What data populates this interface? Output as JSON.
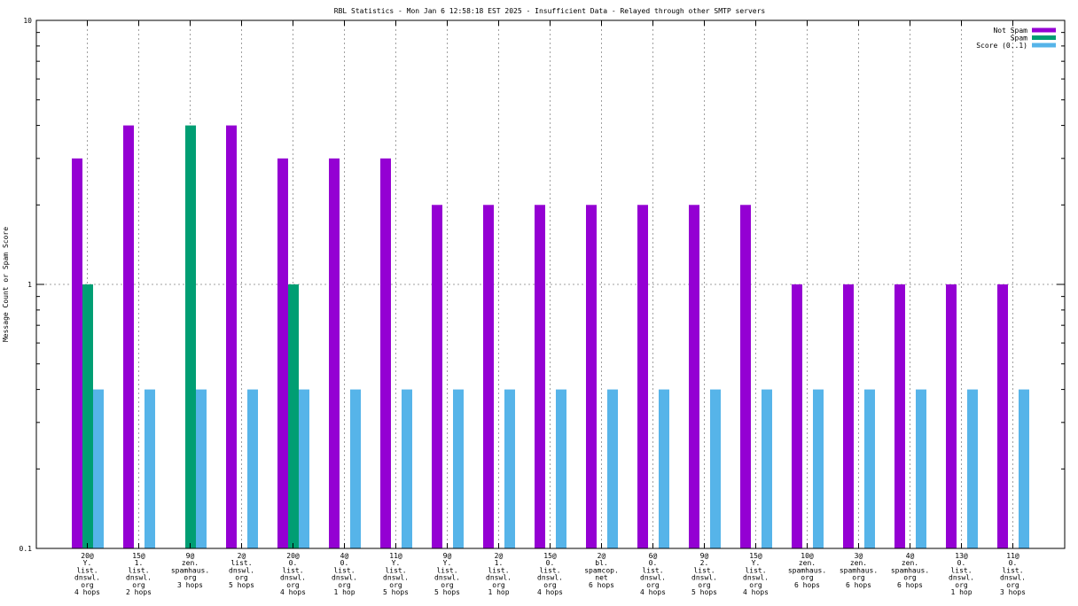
{
  "chart_data": {
    "type": "bar",
    "title": "RBL Statistics - Mon Jan  6 12:58:18 EST 2025 - Insufficient Data - Relayed through other SMTP servers",
    "ylabel": "Message Count or Spam Score",
    "xlabel": "",
    "yscale": "log",
    "ylim": [
      0.1,
      10
    ],
    "ytick_labels": [
      "0.1",
      "1",
      "10"
    ],
    "grid": true,
    "legend_position": "top-right",
    "categories": [
      [
        "20@",
        "Y.",
        "list.",
        "dnswl.",
        "org",
        "4 hops"
      ],
      [
        "15@",
        "1.",
        "list.",
        "dnswl.",
        "org",
        "2 hops"
      ],
      [
        "9@",
        "zen.",
        "spamhaus.",
        "org",
        "3 hops"
      ],
      [
        "2@",
        "list.",
        "dnswl.",
        "org",
        "5 hops"
      ],
      [
        "20@",
        "0.",
        "list.",
        "dnswl.",
        "org",
        "4 hops"
      ],
      [
        "4@",
        "0.",
        "list.",
        "dnswl.",
        "org",
        "1 hop"
      ],
      [
        "11@",
        "Y.",
        "list.",
        "dnswl.",
        "org",
        "5 hops"
      ],
      [
        "9@",
        "Y.",
        "list.",
        "dnswl.",
        "org",
        "5 hops"
      ],
      [
        "2@",
        "1.",
        "list.",
        "dnswl.",
        "org",
        "1 hop"
      ],
      [
        "15@",
        "0.",
        "list.",
        "dnswl.",
        "org",
        "4 hops"
      ],
      [
        "2@",
        "bl.",
        "spamcop.",
        "net",
        "6 hops"
      ],
      [
        "6@",
        "0.",
        "list.",
        "dnswl.",
        "org",
        "4 hops"
      ],
      [
        "9@",
        "2.",
        "list.",
        "dnswl.",
        "org",
        "5 hops"
      ],
      [
        "15@",
        "Y.",
        "list.",
        "dnswl.",
        "org",
        "4 hops"
      ],
      [
        "10@",
        "zen.",
        "spamhaus.",
        "org",
        "6 hops"
      ],
      [
        "3@",
        "zen.",
        "spamhaus.",
        "org",
        "6 hops"
      ],
      [
        "4@",
        "zen.",
        "spamhaus.",
        "org",
        "6 hops"
      ],
      [
        "13@",
        "0.",
        "list.",
        "dnswl.",
        "org",
        "1 hop"
      ],
      [
        "11@",
        "0.",
        "list.",
        "dnswl.",
        "org",
        "3 hops"
      ]
    ],
    "series": [
      {
        "name": "Not Spam",
        "color": "#9400d3",
        "values": [
          3,
          4,
          0,
          4,
          3,
          3,
          3,
          2,
          2,
          2,
          2,
          2,
          2,
          2,
          1,
          1,
          1,
          1,
          1
        ]
      },
      {
        "name": "Spam",
        "color": "#009e73",
        "values": [
          1,
          0,
          4,
          0,
          1,
          0,
          0,
          0,
          0,
          0,
          0,
          0,
          0,
          0,
          0,
          0,
          0,
          0,
          0
        ]
      },
      {
        "name": "Score (0..1)",
        "color": "#56b4e9",
        "values": [
          0.4,
          0.4,
          0.4,
          0.4,
          0.4,
          0.4,
          0.4,
          0.4,
          0.4,
          0.4,
          0.4,
          0.4,
          0.4,
          0.4,
          0.4,
          0.4,
          0.4,
          0.4,
          0.4
        ]
      }
    ]
  }
}
